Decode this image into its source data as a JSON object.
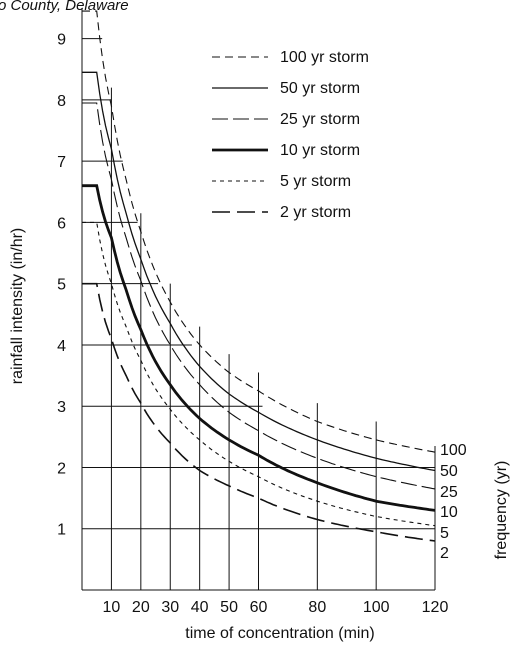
{
  "caption": "o County, Delaware",
  "chart_data": {
    "type": "line",
    "title": "",
    "xlabel": "time of concentration (min)",
    "ylabel": "rainfall intensity (in/hr)",
    "right_label": "frequency (yr)",
    "xlim": [
      0,
      120
    ],
    "ylim": [
      0,
      9.5
    ],
    "x_ticks": [
      10,
      20,
      30,
      40,
      50,
      60,
      80,
      100,
      120
    ],
    "y_ticks": [
      1,
      2,
      3,
      4,
      5,
      6,
      7,
      8,
      9
    ],
    "series": [
      {
        "name": "100 yr storm",
        "freq": "100",
        "style": "dash-medium",
        "x": [
          5,
          10,
          15,
          20,
          30,
          40,
          50,
          60,
          80,
          100,
          120
        ],
        "y": [
          9.45,
          7.9,
          6.7,
          5.85,
          4.7,
          4.0,
          3.55,
          3.25,
          2.75,
          2.45,
          2.25
        ]
      },
      {
        "name": "50 yr storm",
        "freq": "50",
        "style": "solid-thin",
        "x": [
          5,
          10,
          15,
          20,
          30,
          40,
          50,
          60,
          80,
          100,
          120
        ],
        "y": [
          8.45,
          7.2,
          6.15,
          5.4,
          4.35,
          3.65,
          3.2,
          2.9,
          2.45,
          2.15,
          1.95
        ]
      },
      {
        "name": "25 yr storm",
        "freq": "25",
        "style": "dash-long-thin",
        "x": [
          5,
          10,
          15,
          20,
          30,
          40,
          50,
          60,
          80,
          100,
          120
        ],
        "y": [
          7.95,
          6.7,
          5.75,
          5.05,
          4.0,
          3.35,
          2.9,
          2.6,
          2.15,
          1.85,
          1.65
        ]
      },
      {
        "name": "10 yr storm",
        "freq": "10",
        "style": "solid-thick",
        "x": [
          5,
          10,
          15,
          20,
          30,
          40,
          50,
          60,
          80,
          100,
          120
        ],
        "y": [
          6.6,
          5.75,
          4.9,
          4.25,
          3.35,
          2.8,
          2.45,
          2.2,
          1.75,
          1.45,
          1.3
        ]
      },
      {
        "name": "5 yr storm",
        "freq": "5",
        "style": "dash-short",
        "x": [
          5,
          10,
          15,
          20,
          30,
          40,
          50,
          60,
          80,
          100,
          120
        ],
        "y": [
          6.0,
          5.0,
          4.3,
          3.75,
          2.95,
          2.45,
          2.1,
          1.85,
          1.45,
          1.2,
          1.05
        ]
      },
      {
        "name": "2 yr storm",
        "freq": "2",
        "style": "dash-long-thick",
        "x": [
          5,
          10,
          15,
          20,
          30,
          40,
          50,
          60,
          80,
          100,
          120
        ],
        "y": [
          5.0,
          4.1,
          3.5,
          3.05,
          2.4,
          1.95,
          1.7,
          1.5,
          1.15,
          0.95,
          0.8
        ]
      }
    ]
  }
}
